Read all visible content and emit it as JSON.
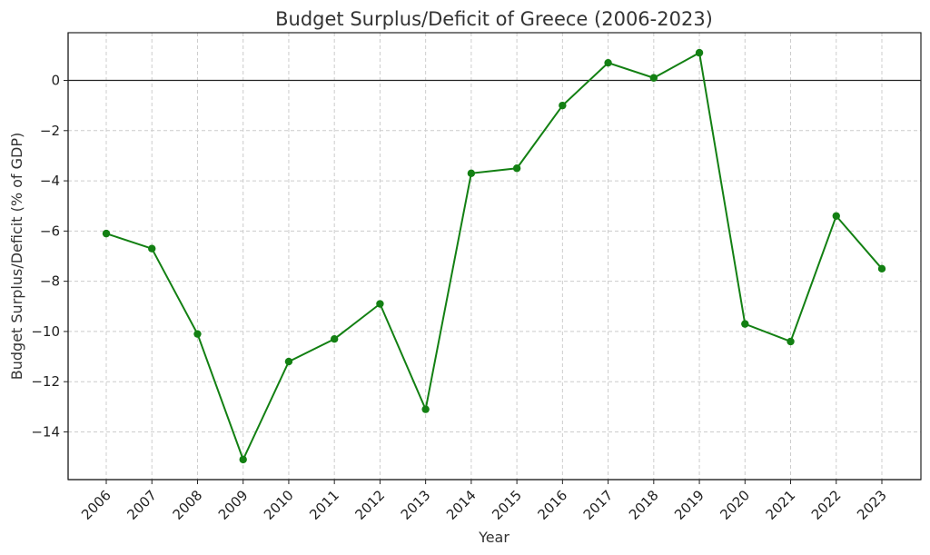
{
  "chart_data": {
    "type": "line",
    "title": "Budget Surplus/Deficit of Greece (2006-2023)",
    "xlabel": "Year",
    "ylabel": "Budget Surplus/Deficit (% of GDP)",
    "x": [
      "2006",
      "2007",
      "2008",
      "2009",
      "2010",
      "2011",
      "2012",
      "2013",
      "2014",
      "2015",
      "2016",
      "2017",
      "2018",
      "2019",
      "2020",
      "2021",
      "2022",
      "2023"
    ],
    "series": [
      {
        "values": [
          -6.1,
          -6.7,
          -10.1,
          -15.1,
          -11.2,
          -10.3,
          -8.9,
          -13.1,
          -3.7,
          -3.5,
          -1.0,
          0.7,
          0.1,
          1.1,
          -9.7,
          -10.4,
          -5.4,
          -7.5
        ],
        "color": "#138013"
      }
    ],
    "ylim": [
      -15.9,
      1.9
    ],
    "yticks": [
      0,
      -2,
      -4,
      -6,
      -8,
      -10,
      -12,
      -14
    ],
    "ytick_labels": [
      "0",
      "−2",
      "−4",
      "−6",
      "−8",
      "−10",
      "−12",
      "−14"
    ],
    "zero_line": true,
    "grid": true,
    "grid_color": "#cccccc",
    "axis_color": "#222222"
  }
}
